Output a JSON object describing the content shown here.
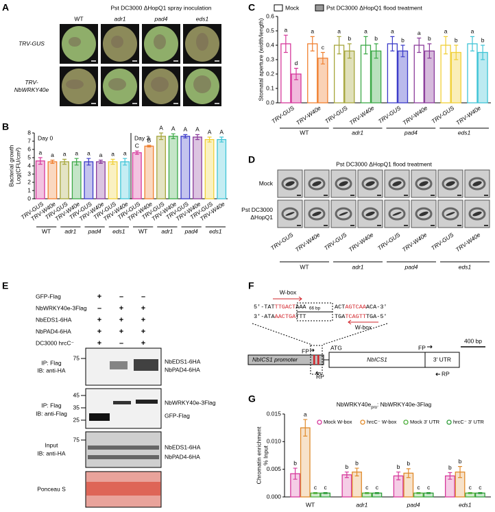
{
  "panels": {
    "A": {
      "letter": "A",
      "title": "Pst DC3000 ΔHopQ1 spray inoculation",
      "columns": [
        "WT",
        "adr1",
        "pad4",
        "eds1"
      ],
      "rows": [
        [
          "TRV-GUS"
        ],
        [
          "TRV-",
          "NbWRKY40e"
        ]
      ]
    },
    "D": {
      "letter": "D",
      "title": "Pst DC3000 ΔHopQ1 flood treatment",
      "rows": [
        [
          "Mock"
        ],
        [
          "Pst DC3000",
          "ΔHopQ1"
        ]
      ],
      "columns": [
        "TRV-GUS",
        "TRV-W40e",
        "TRV-GUS",
        "TRV-W40e",
        "TRV-GUS",
        "TRV-W40e",
        "TRV-GUS",
        "TRV-W40e"
      ],
      "groups": [
        "WT",
        "adr1",
        "pad4",
        "eds1"
      ]
    },
    "E": {
      "letter": "E",
      "conditions": [
        {
          "label": "GFP-Flag",
          "signs": [
            "+",
            "–",
            "–"
          ]
        },
        {
          "label": "NbWRKY40e-3Flag",
          "signs": [
            "–",
            "+",
            "+"
          ]
        },
        {
          "label": "NbEDS1-6HA",
          "signs": [
            "+",
            "+",
            "+"
          ]
        },
        {
          "label": "NbPAD4-6HA",
          "signs": [
            "+",
            "+",
            "+"
          ]
        },
        {
          "label": "DC3000 hrcC⁻",
          "signs": [
            "+",
            "–",
            "+"
          ]
        }
      ],
      "blots": [
        {
          "lines": [
            "IP: Flag",
            "IB: anti-HA"
          ],
          "markers": [
            "75"
          ],
          "bands": [
            "NbEDS1-6HA",
            "NbPAD4-6HA"
          ]
        },
        {
          "lines": [
            "IP: Flag",
            "IB: anti-Flag"
          ],
          "markers": [
            "45",
            "35",
            "25"
          ],
          "bands": [
            "NbWRKY40e-3Flag",
            "GFP-Flag"
          ]
        },
        {
          "lines": [
            "Input",
            "IB: anti-HA"
          ],
          "markers": [
            "75"
          ],
          "bands": [
            "NbEDS1-6HA",
            "NbPAD4-6HA"
          ]
        },
        {
          "lines": [
            "Ponceau S"
          ],
          "markers": [],
          "bands": []
        }
      ]
    },
    "F": {
      "letter": "F",
      "sequences": [
        {
          "left": [
            {
              "t": "5′-TAT"
            },
            {
              "t": "TTGACT",
              "color": "#d2232a"
            },
            {
              "t": "AAA"
            }
          ],
          "right": [
            {
              "t": "ACT"
            },
            {
              "t": "AGTCAA",
              "color": "#d2232a"
            },
            {
              "t": "ACA-3′"
            }
          ]
        },
        {
          "left": [
            {
              "t": "3′-ATA"
            },
            {
              "t": "AACTGA",
              "color": "#d2232a"
            },
            {
              "t": "TTT"
            }
          ],
          "right": [
            {
              "t": "TGA"
            },
            {
              "t": "TCAGTT",
              "color": "#d2232a"
            },
            {
              "t": "TGA-5′"
            }
          ]
        }
      ],
      "gap": "66 bp",
      "wbox": "W-box",
      "wbox_color": "#d2232a",
      "promoter": "NbICS1 promoter",
      "gene": "NbICS1",
      "utr": "3′ UTR",
      "atg": "ATG",
      "fp": "FP",
      "rp": "RP",
      "scale": "400 bp"
    }
  },
  "chart_data": [
    {
      "type": "bar",
      "letter": "B",
      "ylabel": [
        "Bacterial growth",
        "Log(CFU/cm²)"
      ],
      "day_labels": [
        "Day 0",
        "Day 3"
      ],
      "categories": [
        "TRV-GUS",
        "TRV-W40e",
        "TRV-GUS",
        "TRV-W40e",
        "TRV-GUS",
        "TRV-W40e",
        "TRV-GUS",
        "TRV-W40e",
        "TRV-GUS",
        "TRV-W40e",
        "TRV-GUS",
        "TRV-W40e",
        "TRV-GUS",
        "TRV-W40e",
        "TRV-GUS",
        "TRV-W40e"
      ],
      "groups": [
        "WT",
        "adr1",
        "pad4",
        "eds1",
        "WT",
        "adr1",
        "pad4",
        "eds1"
      ],
      "values": [
        4.6,
        4.5,
        4.5,
        4.5,
        4.5,
        4.5,
        4.5,
        4.5,
        5.6,
        6.4,
        7.6,
        7.6,
        7.6,
        7.5,
        7.2,
        7.2
      ],
      "errors": [
        0.4,
        0.2,
        0.3,
        0.4,
        0.4,
        0.2,
        0.3,
        0.4,
        0.2,
        0.1,
        0.4,
        0.3,
        0.2,
        0.3,
        0.3,
        0.3
      ],
      "letters": [
        "a",
        "a",
        "a",
        "a",
        "a",
        "a",
        "a",
        "a",
        "C",
        "B",
        "A",
        "A",
        "A",
        "A",
        "A",
        "A"
      ],
      "colors": [
        "#d6379b",
        "#f07f2e",
        "#a5a53a",
        "#3aa845",
        "#3a3ac8",
        "#8a3a9a",
        "#f0cf35",
        "#3ec4d6"
      ],
      "fill_opacity": 0.3,
      "ylim": [
        0,
        8
      ],
      "yticks": [
        0,
        1,
        2,
        3,
        4,
        5,
        6,
        7,
        8
      ]
    },
    {
      "type": "bar",
      "letter": "C",
      "ylabel": [
        "Stomatal aperture (width/length)"
      ],
      "categories": [
        "TRV-GUS",
        "TRV-W40e",
        "TRV-GUS",
        "TRV-W40e",
        "TRV-GUS",
        "TRV-W40e",
        "TRV-GUS",
        "TRV-W40e"
      ],
      "groups": [
        "WT",
        "adr1",
        "pad4",
        "eds1"
      ],
      "colors": [
        "#d6379b",
        "#f07f2e",
        "#a5a53a",
        "#3aa845",
        "#3a3ac8",
        "#8a3a9a",
        "#f0cf35",
        "#3ec4d6"
      ],
      "series": [
        {
          "name": "Mock",
          "fill_opacity": 0,
          "values": [
            0.41,
            0.41,
            0.4,
            0.4,
            0.41,
            0.4,
            0.4,
            0.41
          ],
          "errors": [
            0.06,
            0.05,
            0.06,
            0.06,
            0.05,
            0.05,
            0.06,
            0.05
          ],
          "letters": [
            "a",
            "a",
            "a",
            "a",
            "a",
            "a",
            "a",
            "a"
          ]
        },
        {
          "name": "Pst DC3000 ΔHopQ1 flood treatment",
          "fill_opacity": 0.35,
          "values": [
            0.2,
            0.31,
            0.36,
            0.36,
            0.36,
            0.36,
            0.35,
            0.35
          ],
          "errors": [
            0.04,
            0.04,
            0.05,
            0.05,
            0.04,
            0.05,
            0.05,
            0.05
          ],
          "letters": [
            "d",
            "c",
            "b",
            "b",
            "b",
            "b",
            "b",
            "b"
          ]
        }
      ],
      "ylim": [
        0,
        0.6
      ],
      "yticks": [
        {
          "value": 0,
          "label": "0.0"
        },
        0.1,
        0.2,
        0.3,
        0.4,
        0.5,
        0.6
      ]
    },
    {
      "type": "bar",
      "letter": "G",
      "title": [
        "NbWRKY40e",
        "pro",
        ": NbWRKY40e-3Flag"
      ],
      "ylabel": [
        "Chromatin enrichment",
        "% Input"
      ],
      "categories": [
        "WT",
        "adr1",
        "pad4",
        "eds1"
      ],
      "series": [
        {
          "name": "Mock W-box",
          "color": "#d6379b",
          "fill_opacity": 0.25,
          "values": [
            0.0042,
            0.004,
            0.0038,
            0.0038
          ],
          "errors": [
            0.001,
            0.0005,
            0.0007,
            0.0006
          ],
          "letters": [
            "b",
            "b",
            "b",
            "b"
          ]
        },
        {
          "name": "hrcC⁻ W-box",
          "color": "#e08a2a",
          "fill_opacity": 0.25,
          "values": [
            0.0125,
            0.0045,
            0.0043,
            0.0045
          ],
          "errors": [
            0.0015,
            0.0007,
            0.0008,
            0.001
          ],
          "letters": [
            "a",
            "b",
            "b",
            "b"
          ]
        },
        {
          "name": "Mock 3′ UTR",
          "color": "#4caf3a",
          "fill_opacity": 0.25,
          "values": [
            0.0007,
            0.0007,
            0.0007,
            0.0007
          ],
          "errors": [
            0.0001,
            0.0001,
            0.0001,
            0.0001
          ],
          "letters": [
            "c",
            "c",
            "c",
            "c"
          ]
        },
        {
          "name": "hrcC⁻ 3′ UTR",
          "color": "#2f9e3a",
          "fill_opacity": 0.25,
          "values": [
            0.0007,
            0.0007,
            0.0007,
            0.0007
          ],
          "errors": [
            0.0001,
            0.0001,
            0.0001,
            0.0001
          ],
          "letters": [
            "c",
            "c",
            "c",
            "c"
          ]
        }
      ],
      "ylim": [
        0,
        0.015
      ],
      "yticks": [
        {
          "value": 0,
          "label": "0.000"
        },
        {
          "value": 0.005,
          "label": "0.005"
        },
        {
          "value": 0.01,
          "label": "0.010"
        },
        {
          "value": 0.015,
          "label": "0.015"
        }
      ]
    }
  ]
}
